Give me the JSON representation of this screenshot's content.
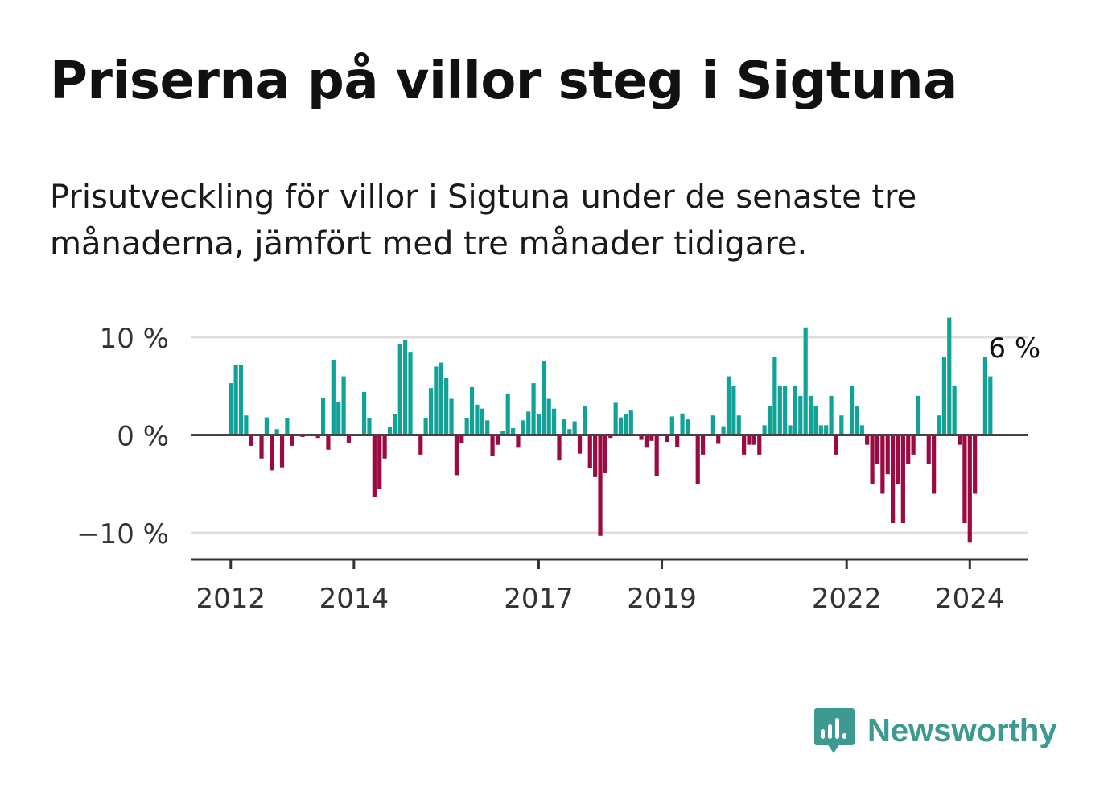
{
  "title": "Priserna på villor steg i Sigtuna",
  "subtitle": "Prisutveckling för villor i Sigtuna under de senaste tre månaderna, jämfört med tre månader tidigare.",
  "brand": {
    "name": "Newsworthy",
    "icon": "bar-chart-speech-bubble-icon"
  },
  "colors": {
    "positive": "#12a398",
    "negative": "#9c0a43",
    "brand": "#3e9a91",
    "grid": "#dddddd",
    "axis": "#333333"
  },
  "chart_data": {
    "type": "bar",
    "title": "",
    "xlabel": "",
    "ylabel": "",
    "ylim": [
      -12.7,
      13.2
    ],
    "xlim": [
      2011.35,
      2024.95
    ],
    "y_ticks": [
      10,
      0,
      -10
    ],
    "y_tick_labels": [
      "10 %",
      "0 %",
      "−10 %"
    ],
    "x_ticks": [
      2012,
      2014,
      2017,
      2019,
      2022,
      2024
    ],
    "x_tick_labels": [
      "2012",
      "2014",
      "2017",
      "2019",
      "2022",
      "2024"
    ],
    "last_value_label": "6 %",
    "series": [
      {
        "name": "Prisutveckling",
        "start": 2012.0,
        "step_months": 1,
        "values": [
          5.3,
          7.2,
          7.2,
          2.0,
          -1.1,
          0.0,
          -2.4,
          1.8,
          -3.6,
          0.6,
          -3.3,
          1.7,
          -1.1,
          0.0,
          -0.2,
          0.0,
          0.0,
          -0.3,
          3.8,
          -1.5,
          7.7,
          3.4,
          6.0,
          -0.8,
          0.0,
          0.0,
          4.4,
          1.7,
          -6.3,
          -5.5,
          -2.4,
          0.8,
          2.1,
          9.3,
          9.7,
          8.5,
          0.0,
          -2.0,
          1.7,
          4.8,
          7.0,
          7.4,
          5.8,
          3.7,
          -4.1,
          -0.8,
          1.7,
          4.9,
          3.1,
          2.7,
          1.5,
          -2.1,
          -1.0,
          0.4,
          4.2,
          0.7,
          -1.3,
          1.5,
          2.4,
          5.3,
          2.1,
          7.6,
          3.7,
          2.7,
          -2.6,
          1.6,
          0.6,
          1.4,
          -1.9,
          3.0,
          -3.4,
          -4.3,
          -10.3,
          -3.9,
          -0.3,
          3.3,
          1.8,
          2.1,
          2.5,
          0.0,
          -0.5,
          -1.3,
          -0.6,
          -4.2,
          0.0,
          -0.7,
          1.9,
          -1.2,
          2.2,
          1.6,
          0.0,
          -5.0,
          -2.0,
          0.0,
          2.0,
          -0.9,
          0.9,
          6.0,
          5.0,
          2.0,
          -2.0,
          -1.0,
          -1.0,
          -2.0,
          1.0,
          3.0,
          8.0,
          5.0,
          5.0,
          1.0,
          5.0,
          4.0,
          11.0,
          4.0,
          3.0,
          1.0,
          1.0,
          4.0,
          -2.0,
          2.0,
          0.0,
          5.0,
          3.0,
          1.0,
          -1.0,
          -5.0,
          -3.0,
          -6.0,
          -4.0,
          -9.0,
          -5.0,
          -9.0,
          -3.0,
          -2.0,
          4.0,
          0.0,
          -3.0,
          -6.0,
          2.0,
          8.0,
          12.0,
          5.0,
          -1.0,
          -9.0,
          -11.0,
          -6.0,
          0.0,
          8.0,
          6.0
        ]
      }
    ]
  }
}
